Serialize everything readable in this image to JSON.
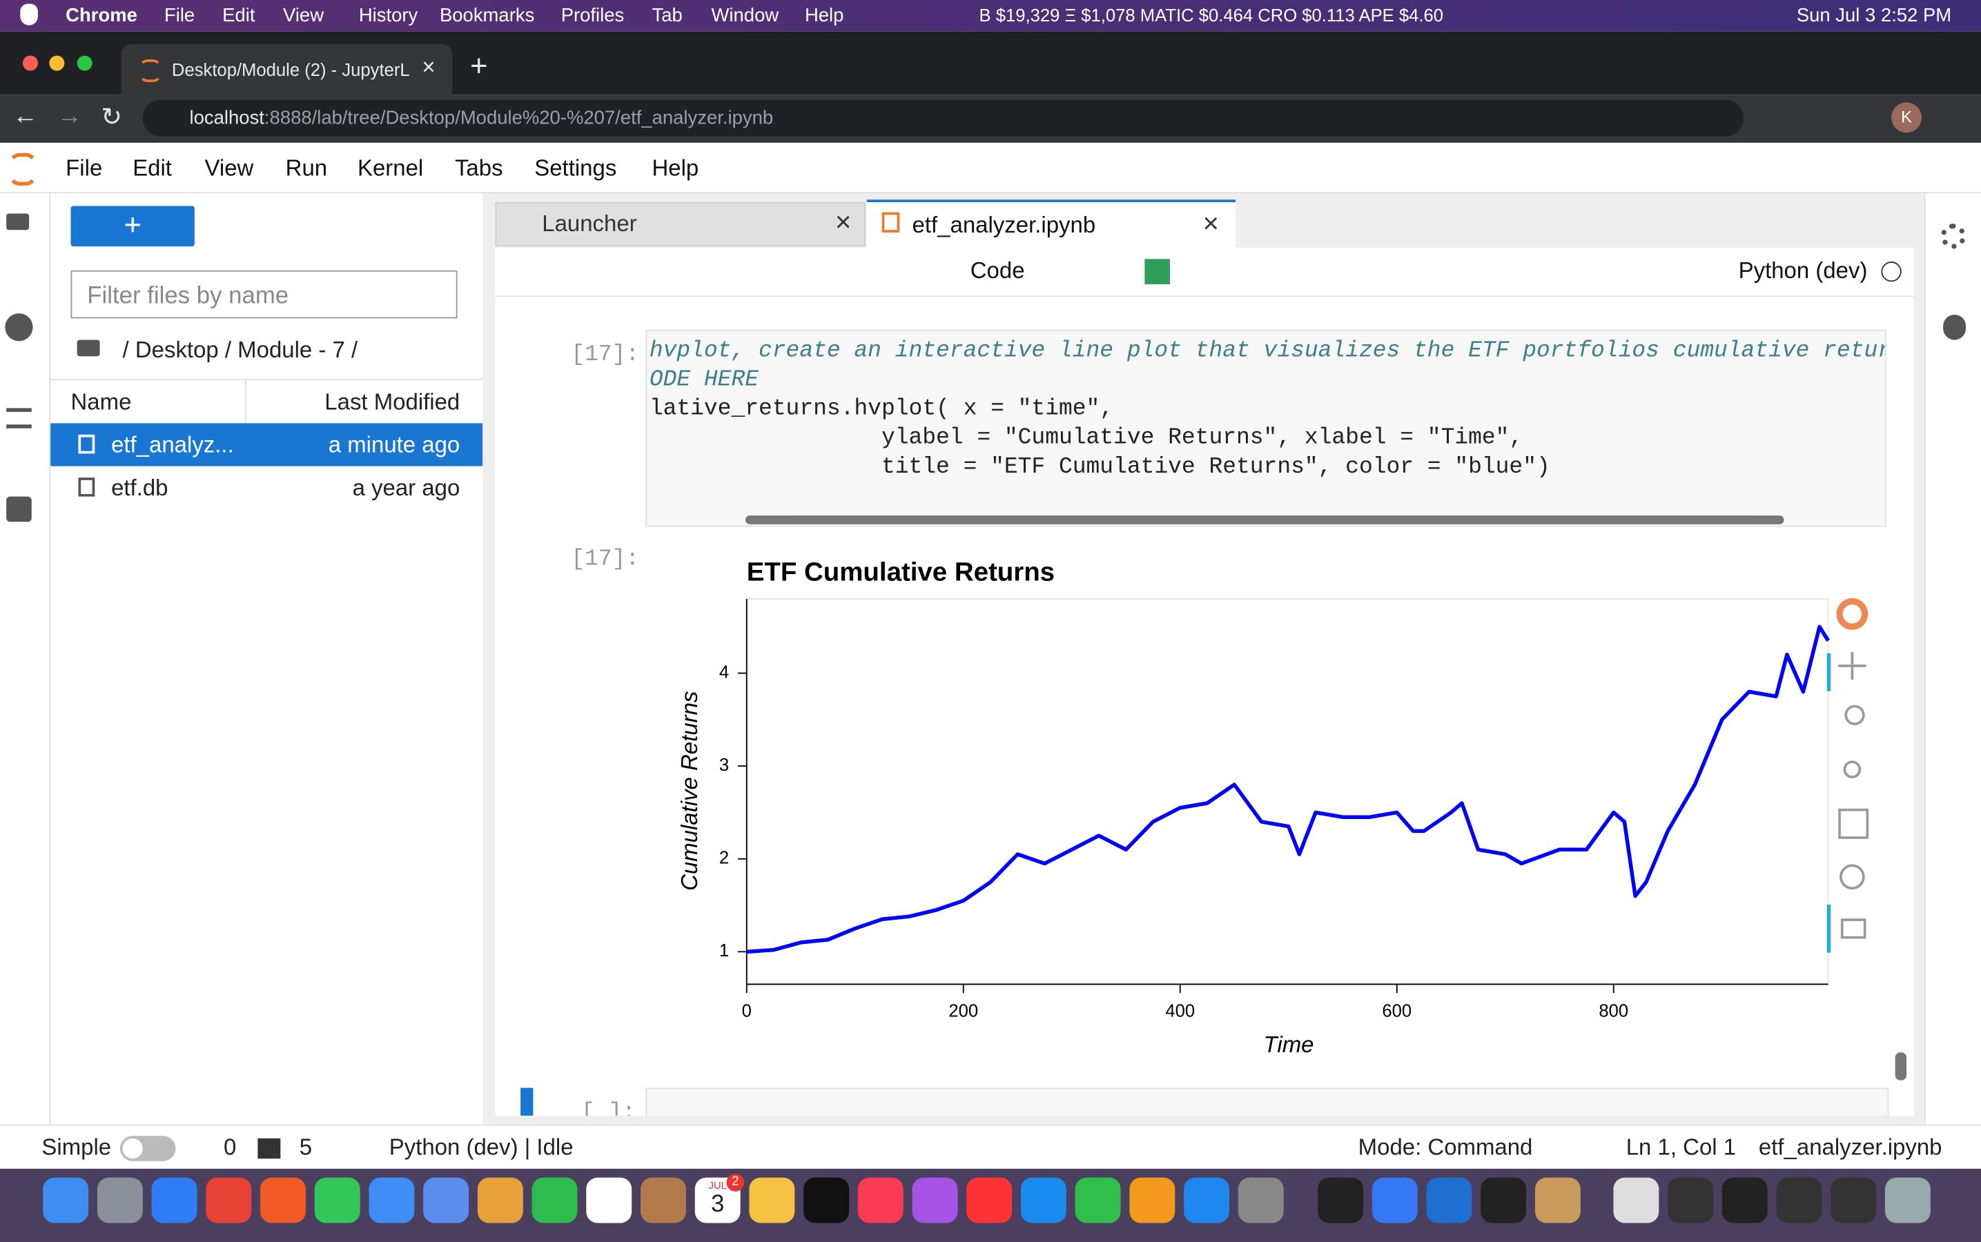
{
  "menubar": {
    "app": "Chrome",
    "items": [
      "File",
      "Edit",
      "View",
      "History",
      "Bookmarks",
      "Profiles",
      "Tab",
      "Window",
      "Help"
    ],
    "ticker": "B $19,329 Ξ $1,078 MATIC $0.464 CRO $0.113 APE $4.60",
    "datetime": "Sun Jul 3  2:52 PM"
  },
  "browser": {
    "tab_title": "Desktop/Module (2) - JupyterL",
    "url_host": "localhost",
    "url_rest": ":8888/lab/tree/Desktop/Module%20-%207/etf_analyzer.ipynb",
    "profile": "K"
  },
  "jupyter": {
    "menu": [
      "File",
      "Edit",
      "View",
      "Run",
      "Kernel",
      "Tabs",
      "Settings",
      "Help"
    ],
    "filter_placeholder": "Filter files by name",
    "breadcrumb": "/ Desktop / Module - 7 /",
    "columns": [
      "Name",
      "Last Modified"
    ],
    "files": [
      {
        "name": "etf_analyz...",
        "modified": "a minute ago"
      },
      {
        "name": "etf.db",
        "modified": "a year ago"
      }
    ],
    "tabs": [
      "Launcher",
      "etf_analyzer.ipynb"
    ],
    "cell_type": "Code",
    "kernel": "Python (dev)",
    "input_prompt": "[17]:",
    "code_lines": [
      "hvplot, create an interactive line plot that visualizes the ETF portfolios cumulative returr",
      "ODE HERE",
      "lative_returns.hvplot( x = \"time\",",
      "                 ylabel = \"Cumulative Returns\", xlabel = \"Time\",",
      "                 title = \"ETF Cumulative Returns\", color = \"blue\")"
    ],
    "output_prompt": "[17]:",
    "next_prompt": "[ ]:"
  },
  "status": {
    "mode_label": "Simple",
    "terminals": "0",
    "kernels": "5",
    "kernel_status": "Python (dev) | Idle",
    "mode": "Mode: Command",
    "position": "Ln 1, Col 1",
    "file": "etf_analyzer.ipynb"
  },
  "dock": {
    "calendar_month": "JUL",
    "calendar_day": "3",
    "reminders_badge": "2"
  },
  "chart_data": {
    "type": "line",
    "title": "ETF Cumulative Returns",
    "xlabel": "Time",
    "ylabel": "Cumulative Returns",
    "color": "blue",
    "x": [
      0,
      25,
      50,
      75,
      100,
      125,
      150,
      175,
      200,
      225,
      250,
      275,
      300,
      325,
      350,
      375,
      400,
      425,
      450,
      475,
      500,
      510,
      525,
      550,
      575,
      600,
      615,
      625,
      650,
      660,
      675,
      700,
      715,
      750,
      775,
      800,
      810,
      820,
      830,
      850,
      875,
      900,
      925,
      950,
      960,
      975,
      990,
      998
    ],
    "values": [
      1.0,
      1.02,
      1.1,
      1.13,
      1.25,
      1.35,
      1.38,
      1.45,
      1.55,
      1.75,
      2.05,
      1.95,
      2.1,
      2.25,
      2.1,
      2.4,
      2.55,
      2.6,
      2.8,
      2.4,
      2.35,
      2.05,
      2.5,
      2.45,
      2.45,
      2.5,
      2.3,
      2.3,
      2.5,
      2.6,
      2.1,
      2.05,
      1.95,
      2.1,
      2.1,
      2.5,
      2.4,
      1.6,
      1.75,
      2.3,
      2.8,
      3.5,
      3.8,
      3.75,
      4.2,
      3.8,
      4.5,
      4.35
    ],
    "xlim": [
      0,
      998
    ],
    "ylim": [
      0.65,
      4.8
    ],
    "xticks": [
      0,
      200,
      400,
      600,
      800
    ],
    "yticks": [
      1,
      2,
      3,
      4
    ]
  }
}
